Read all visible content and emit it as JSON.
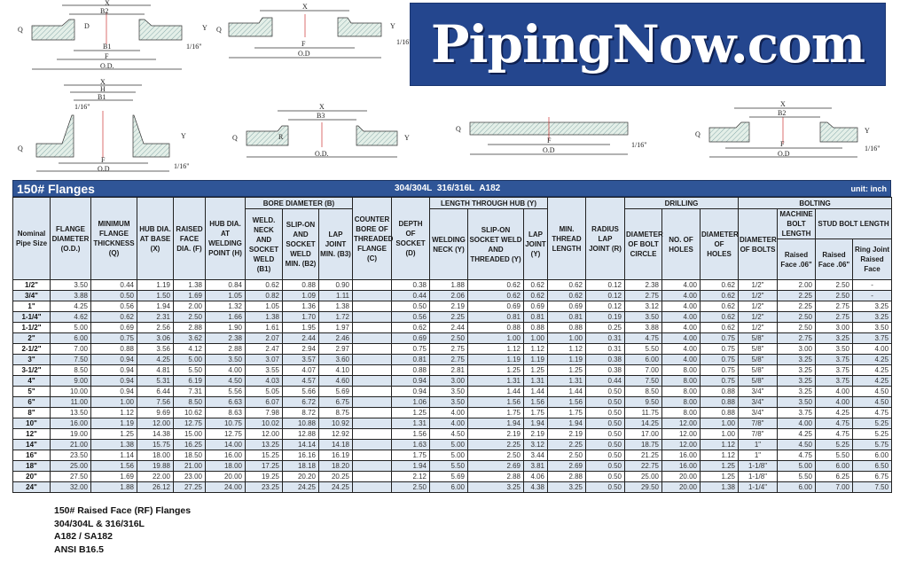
{
  "logo": {
    "text": "PipingNow.com",
    "background": "#24468e"
  },
  "drawings": {
    "slip_on": [
      "X",
      "B2",
      "D",
      "B1",
      "F",
      "O.D.",
      "Q",
      "Y",
      "1/16\""
    ],
    "threaded": [
      "X",
      "F",
      "O.D",
      "Q",
      "Y",
      "1/16\""
    ],
    "weld_neck": [
      "X",
      "H",
      "B1",
      "1/16\"",
      "F",
      "O.D",
      "Q",
      "Y",
      "1/16\""
    ],
    "lap_joint": [
      "X",
      "B3",
      "O.D.",
      "Q",
      "R",
      "Y"
    ],
    "blind": [
      "F",
      "O.D",
      "Q",
      "1/16\""
    ],
    "socket_weld": [
      "X",
      "B2",
      "F",
      "O.D",
      "Q",
      "Y",
      "1/16\""
    ]
  },
  "table": {
    "title": "150# Flanges",
    "material": "304/304L  316/316L  A182",
    "unit": "unit: inch",
    "header_color": "#2f5597",
    "stripe_color": "#dce6f1",
    "groups": {
      "bore": "BORE DIAMETER (B)",
      "length": "LENGTH THROUGH HUB (Y)",
      "drilling": "DRILLING",
      "bolting": "BOLTING",
      "machine": "MACHINE BOLT LENGTH",
      "stud": "STUD BOLT LENGTH"
    },
    "columns": [
      "Nominal Pipe Size",
      "FLANGE DIAMETER (O.D.)",
      "MINIMUM FLANGE THICKNESS (Q)",
      "HUB DIA. AT BASE (X)",
      "RAISED FACE DIA. (F)",
      "HUB DIA. AT WELDING POINT (H)",
      "WELD. NECK AND SOCKET WELD (B1)",
      "SLIP-ON AND SOCKET WELD MIN. (B2)",
      "LAP JOINT MIN. (B3)",
      "COUNTER BORE OF THREADED FLANGE (C)",
      "DEPTH OF SOCKET (D)",
      "WELDING NECK (Y)",
      "SLIP-ON SOCKET WELD AND THREADED (Y)",
      "LAP JOINT (Y)",
      "MIN. THREAD LENGTH",
      "RADIUS LAP JOINT (R)",
      "DIAMETER OF BOLT CIRCLE",
      "NO. OF HOLES",
      "DIAMETER OF HOLES",
      "DIAMETER OF BOLTS",
      "Raised Face .06\"",
      "Raised Face .06\"",
      "Ring Joint Raised Face"
    ],
    "rows": [
      [
        "1/2\"",
        "3.50",
        "0.44",
        "1.19",
        "1.38",
        "0.84",
        "0.62",
        "0.88",
        "0.90",
        "",
        "0.38",
        "1.88",
        "0.62",
        "0.62",
        "0.62",
        "0.12",
        "2.38",
        "4.00",
        "0.62",
        "1/2\"",
        "2.00",
        "2.50",
        "-"
      ],
      [
        "3/4\"",
        "3.88",
        "0.50",
        "1.50",
        "1.69",
        "1.05",
        "0.82",
        "1.09",
        "1.11",
        "",
        "0.44",
        "2.06",
        "0.62",
        "0.62",
        "0.62",
        "0.12",
        "2.75",
        "4.00",
        "0.62",
        "1/2\"",
        "2.25",
        "2.50",
        "-"
      ],
      [
        "1\"",
        "4.25",
        "0.56",
        "1.94",
        "2.00",
        "1.32",
        "1.05",
        "1.36",
        "1.38",
        "",
        "0.50",
        "2.19",
        "0.69",
        "0.69",
        "0.69",
        "0.12",
        "3.12",
        "4.00",
        "0.62",
        "1/2\"",
        "2.25",
        "2.75",
        "3.25"
      ],
      [
        "1-1/4\"",
        "4.62",
        "0.62",
        "2.31",
        "2.50",
        "1.66",
        "1.38",
        "1.70",
        "1.72",
        "",
        "0.56",
        "2.25",
        "0.81",
        "0.81",
        "0.81",
        "0.19",
        "3.50",
        "4.00",
        "0.62",
        "1/2\"",
        "2.50",
        "2.75",
        "3.25"
      ],
      [
        "1-1/2\"",
        "5.00",
        "0.69",
        "2.56",
        "2.88",
        "1.90",
        "1.61",
        "1.95",
        "1.97",
        "",
        "0.62",
        "2.44",
        "0.88",
        "0.88",
        "0.88",
        "0.25",
        "3.88",
        "4.00",
        "0.62",
        "1/2\"",
        "2.50",
        "3.00",
        "3.50"
      ],
      [
        "2\"",
        "6.00",
        "0.75",
        "3.06",
        "3.62",
        "2.38",
        "2.07",
        "2.44",
        "2.46",
        "",
        "0.69",
        "2.50",
        "1.00",
        "1.00",
        "1.00",
        "0.31",
        "4.75",
        "4.00",
        "0.75",
        "5/8\"",
        "2.75",
        "3.25",
        "3.75"
      ],
      [
        "2-1/2\"",
        "7.00",
        "0.88",
        "3.56",
        "4.12",
        "2.88",
        "2.47",
        "2.94",
        "2.97",
        "",
        "0.75",
        "2.75",
        "1.12",
        "1.12",
        "1.12",
        "0.31",
        "5.50",
        "4.00",
        "0.75",
        "5/8\"",
        "3.00",
        "3.50",
        "4.00"
      ],
      [
        "3\"",
        "7.50",
        "0.94",
        "4.25",
        "5.00",
        "3.50",
        "3.07",
        "3.57",
        "3.60",
        "",
        "0.81",
        "2.75",
        "1.19",
        "1.19",
        "1.19",
        "0.38",
        "6.00",
        "4.00",
        "0.75",
        "5/8\"",
        "3.25",
        "3.75",
        "4.25"
      ],
      [
        "3-1/2\"",
        "8.50",
        "0.94",
        "4.81",
        "5.50",
        "4.00",
        "3.55",
        "4.07",
        "4.10",
        "",
        "0.88",
        "2.81",
        "1.25",
        "1.25",
        "1.25",
        "0.38",
        "7.00",
        "8.00",
        "0.75",
        "5/8\"",
        "3.25",
        "3.75",
        "4.25"
      ],
      [
        "4\"",
        "9.00",
        "0.94",
        "5.31",
        "6.19",
        "4.50",
        "4.03",
        "4.57",
        "4.60",
        "",
        "0.94",
        "3.00",
        "1.31",
        "1.31",
        "1.31",
        "0.44",
        "7.50",
        "8.00",
        "0.75",
        "5/8\"",
        "3.25",
        "3.75",
        "4.25"
      ],
      [
        "5\"",
        "10.00",
        "0.94",
        "6.44",
        "7.31",
        "5.56",
        "5.05",
        "5.66",
        "5.69",
        "",
        "0.94",
        "3.50",
        "1.44",
        "1.44",
        "1.44",
        "0.50",
        "8.50",
        "8.00",
        "0.88",
        "3/4\"",
        "3.25",
        "4.00",
        "4.50"
      ],
      [
        "6\"",
        "11.00",
        "1.00",
        "7.56",
        "8.50",
        "6.63",
        "6.07",
        "6.72",
        "6.75",
        "",
        "1.06",
        "3.50",
        "1.56",
        "1.56",
        "1.56",
        "0.50",
        "9.50",
        "8.00",
        "0.88",
        "3/4\"",
        "3.50",
        "4.00",
        "4.50"
      ],
      [
        "8\"",
        "13.50",
        "1.12",
        "9.69",
        "10.62",
        "8.63",
        "7.98",
        "8.72",
        "8.75",
        "",
        "1.25",
        "4.00",
        "1.75",
        "1.75",
        "1.75",
        "0.50",
        "11.75",
        "8.00",
        "0.88",
        "3/4\"",
        "3.75",
        "4.25",
        "4.75"
      ],
      [
        "10\"",
        "16.00",
        "1.19",
        "12.00",
        "12.75",
        "10.75",
        "10.02",
        "10.88",
        "10.92",
        "",
        "1.31",
        "4.00",
        "1.94",
        "1.94",
        "1.94",
        "0.50",
        "14.25",
        "12.00",
        "1.00",
        "7/8\"",
        "4.00",
        "4.75",
        "5.25"
      ],
      [
        "12\"",
        "19.00",
        "1.25",
        "14.38",
        "15.00",
        "12.75",
        "12.00",
        "12.88",
        "12.92",
        "",
        "1.56",
        "4.50",
        "2.19",
        "2.19",
        "2.19",
        "0.50",
        "17.00",
        "12.00",
        "1.00",
        "7/8\"",
        "4.25",
        "4.75",
        "5.25"
      ],
      [
        "14\"",
        "21.00",
        "1.38",
        "15.75",
        "16.25",
        "14.00",
        "13.25",
        "14.14",
        "14.18",
        "",
        "1.63",
        "5.00",
        "2.25",
        "3.12",
        "2.25",
        "0.50",
        "18.75",
        "12.00",
        "1.12",
        "1\"",
        "4.50",
        "5.25",
        "5.75"
      ],
      [
        "16\"",
        "23.50",
        "1.14",
        "18.00",
        "18.50",
        "16.00",
        "15.25",
        "16.16",
        "16.19",
        "",
        "1.75",
        "5.00",
        "2.50",
        "3.44",
        "2.50",
        "0.50",
        "21.25",
        "16.00",
        "1.12",
        "1\"",
        "4.75",
        "5.50",
        "6.00"
      ],
      [
        "18\"",
        "25.00",
        "1.56",
        "19.88",
        "21.00",
        "18.00",
        "17.25",
        "18.18",
        "18.20",
        "",
        "1.94",
        "5.50",
        "2.69",
        "3.81",
        "2.69",
        "0.50",
        "22.75",
        "16.00",
        "1.25",
        "1-1/8\"",
        "5.00",
        "6.00",
        "6.50"
      ],
      [
        "20\"",
        "27.50",
        "1.69",
        "22.00",
        "23.00",
        "20.00",
        "19.25",
        "20.20",
        "20.25",
        "",
        "2.12",
        "5.69",
        "2.88",
        "4.06",
        "2.88",
        "0.50",
        "25.00",
        "20.00",
        "1.25",
        "1-1/8\"",
        "5.50",
        "6.25",
        "6.75"
      ],
      [
        "24\"",
        "32.00",
        "1.88",
        "26.12",
        "27.25",
        "24.00",
        "23.25",
        "24.25",
        "24.25",
        "",
        "2.50",
        "6.00",
        "3.25",
        "4.38",
        "3.25",
        "0.50",
        "29.50",
        "20.00",
        "1.38",
        "1-1/4\"",
        "6.00",
        "7.00",
        "7.50"
      ]
    ]
  },
  "footer": [
    "150# Raised Face (RF) Flanges",
    "304/304L & 316/316L",
    "A182 / SA182",
    "ANSI B16.5"
  ]
}
